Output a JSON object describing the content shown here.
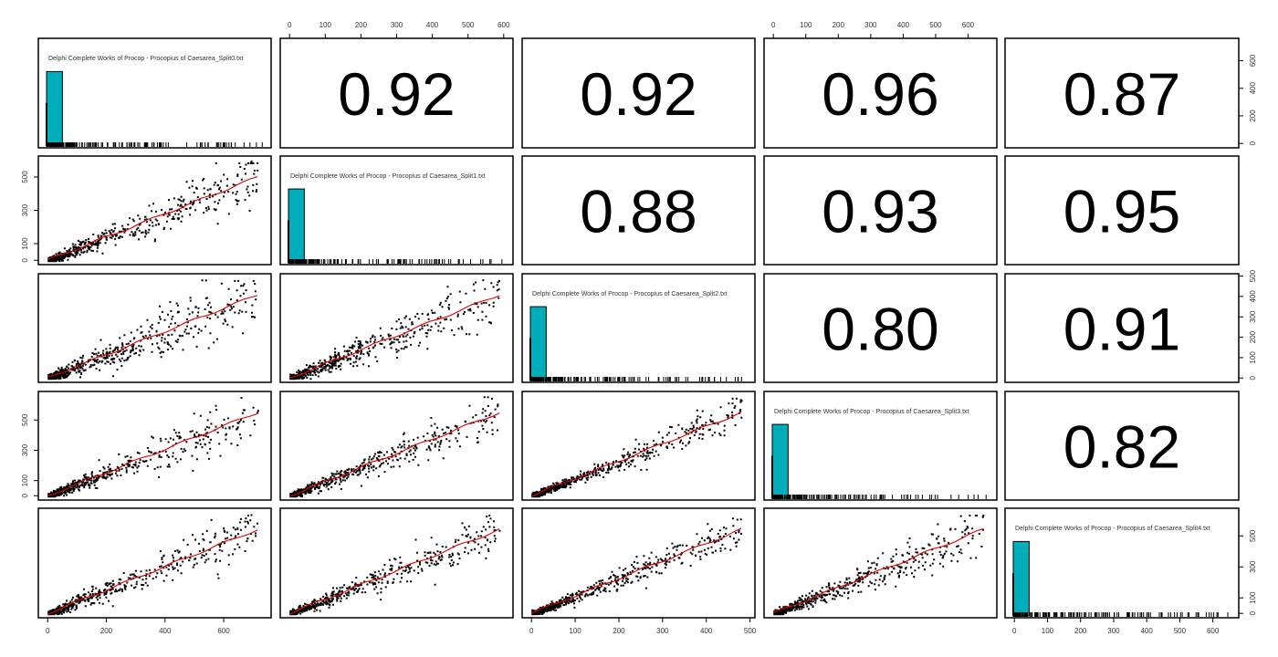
{
  "chart_data": {
    "type": "scatter",
    "title": "",
    "layout": "pairs-panel 5x5: lower=scatter with red loess line, diagonal=histogram with rug, upper=correlation coefficient",
    "variables": [
      "Delphi Complete Works of Procop - Procopius of Caesarea_Split0.txt",
      "Delphi Complete Works of Procop - Procopius of Caesarea_Split1.txt",
      "Delphi Complete Works of Procop - Procopius of Caesarea_Split2.txt",
      "Delphi Complete Works of Procop - Procopius of Caesarea_Split3.txt",
      "Delphi Complete Works of Procop - Procopius of Caesarea_Split4.txt"
    ],
    "variable_ranges": [
      [
        0,
        730
      ],
      [
        0,
        600
      ],
      [
        0,
        490
      ],
      [
        0,
        660
      ],
      [
        0,
        650
      ]
    ],
    "correlations": [
      {
        "row": 0,
        "col": 1,
        "value": "0.92"
      },
      {
        "row": 0,
        "col": 2,
        "value": "0.92"
      },
      {
        "row": 0,
        "col": 3,
        "value": "0.96"
      },
      {
        "row": 0,
        "col": 4,
        "value": "0.87"
      },
      {
        "row": 1,
        "col": 2,
        "value": "0.88"
      },
      {
        "row": 1,
        "col": 3,
        "value": "0.93"
      },
      {
        "row": 1,
        "col": 4,
        "value": "0.95"
      },
      {
        "row": 2,
        "col": 3,
        "value": "0.80"
      },
      {
        "row": 2,
        "col": 4,
        "value": "0.91"
      },
      {
        "row": 3,
        "col": 4,
        "value": "0.82"
      }
    ],
    "axes": {
      "top": [
        {
          "col": 1,
          "ticks": [
            "0",
            "100",
            "200",
            "300",
            "400",
            "500",
            "600"
          ],
          "max": 600
        },
        {
          "col": 3,
          "ticks": [
            "0",
            "100",
            "200",
            "300",
            "400",
            "500",
            "600"
          ],
          "max": 660
        }
      ],
      "bottom": [
        {
          "col": 0,
          "ticks": [
            "0",
            "200",
            "400",
            "600"
          ],
          "max": 730
        },
        {
          "col": 2,
          "ticks": [
            "0",
            "100",
            "200",
            "300",
            "400",
            "500"
          ],
          "max": 490
        },
        {
          "col": 4,
          "ticks": [
            "0",
            "100",
            "200",
            "300",
            "400",
            "500",
            "600"
          ],
          "max": 650
        }
      ],
      "left": [
        {
          "row": 1,
          "ticks": [
            "0",
            "100",
            "300",
            "500"
          ],
          "max": 600
        },
        {
          "row": 3,
          "ticks": [
            "0",
            "100",
            "300",
            "500"
          ],
          "max": 660
        }
      ],
      "right": [
        {
          "row": 0,
          "ticks": [
            "0",
            "200",
            "400",
            "600"
          ],
          "max": 730
        },
        {
          "row": 2,
          "ticks": [
            "0",
            "100",
            "200",
            "300",
            "400",
            "500"
          ],
          "max": 490
        },
        {
          "row": 4,
          "ticks": [
            "0",
            "100",
            "300",
            "500"
          ],
          "max": 650
        }
      ]
    },
    "histogram": {
      "bar_color": "#00AEBB",
      "first_bin_relative_height": 0.68,
      "bin_width_fraction": 0.068
    },
    "smoother_color": "#DD0000",
    "grid": false,
    "legend": "none"
  },
  "colors": {
    "background": "#FFFFFF",
    "frame": "#000000",
    "points": "#000000",
    "loess": "#DD0000",
    "histogram_fill": "#00AEBB"
  }
}
